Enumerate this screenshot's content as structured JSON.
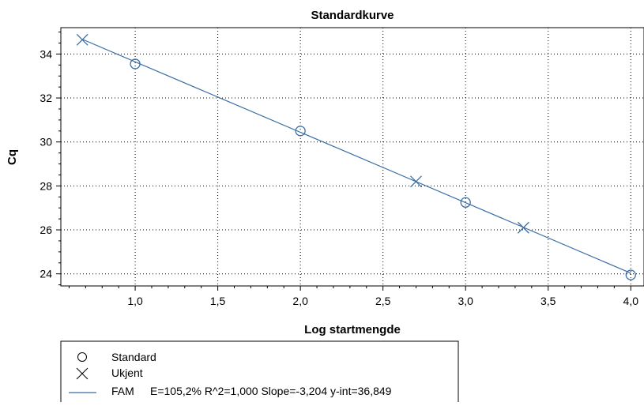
{
  "chart_data": {
    "type": "scatter",
    "title": "Standardkurve",
    "xlabel": "Log startmengde",
    "ylabel": "Cq",
    "xlim": [
      0.55,
      4.08
    ],
    "ylim": [
      23.45,
      35.2
    ],
    "x_ticks": [
      {
        "value": 1.0,
        "label": "1,0"
      },
      {
        "value": 1.5,
        "label": "1,5"
      },
      {
        "value": 2.0,
        "label": "2,0"
      },
      {
        "value": 2.5,
        "label": "2,5"
      },
      {
        "value": 3.0,
        "label": "3,0"
      },
      {
        "value": 3.5,
        "label": "3,5"
      },
      {
        "value": 4.0,
        "label": "4,0"
      }
    ],
    "y_ticks": [
      {
        "value": 24,
        "label": "24"
      },
      {
        "value": 26,
        "label": "26"
      },
      {
        "value": 28,
        "label": "28"
      },
      {
        "value": 30,
        "label": "30"
      },
      {
        "value": 32,
        "label": "32"
      },
      {
        "value": 34,
        "label": "34"
      }
    ],
    "grid": true,
    "series": [
      {
        "name": "Standard",
        "marker": "circle",
        "points": [
          {
            "x": 1.0,
            "y": 33.55
          },
          {
            "x": 2.0,
            "y": 30.5
          },
          {
            "x": 3.0,
            "y": 27.25
          },
          {
            "x": 4.0,
            "y": 23.95
          }
        ]
      },
      {
        "name": "Ukjent",
        "marker": "x",
        "points": [
          {
            "x": 0.68,
            "y": 34.65
          },
          {
            "x": 2.7,
            "y": 28.2
          },
          {
            "x": 3.35,
            "y": 26.1
          }
        ]
      }
    ],
    "fit_line": {
      "name": "FAM",
      "label": "E=105,2% R^2=1,000 Slope=-3,204 y-int=36,849",
      "slope": -3.204,
      "intercept": 36.849,
      "x_range": [
        0.68,
        4.0
      ]
    },
    "legend_position": "bottom-left",
    "colors": {
      "series": "#3a6ea5",
      "axis": "#000000",
      "grid": "#000000"
    }
  }
}
